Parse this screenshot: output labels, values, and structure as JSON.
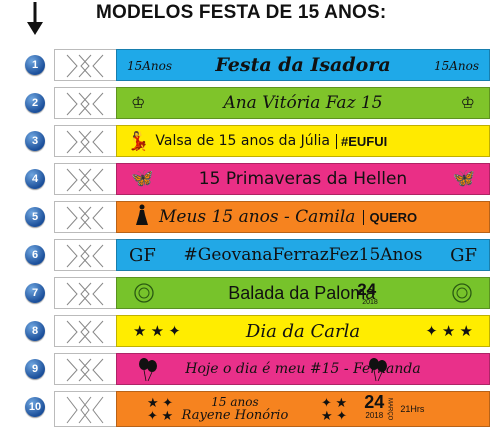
{
  "header": {
    "title": "MODELOS FESTA DE 15 ANOS:"
  },
  "colors": {
    "blue": "#1fa9e8",
    "green": "#7fc42a",
    "yellow": "#ffea00",
    "pink": "#ea2f86",
    "orange": "#f6831f",
    "number_badge": "#1b4f9a"
  },
  "models": [
    {
      "number": "1",
      "text": "Festa da Isadora",
      "badge_text": "15Anos"
    },
    {
      "number": "2",
      "text": "Ana Vitória Faz 15"
    },
    {
      "number": "3",
      "text": "Valsa de 15 anos da Júlia",
      "tag": "#EUFUI"
    },
    {
      "number": "4",
      "text": "15 Primaveras da Hellen"
    },
    {
      "number": "5",
      "text": "Meus 15 anos - Camila",
      "tag": "QUERO"
    },
    {
      "number": "6",
      "text": "#GeovanaFerrazFez15Anos",
      "monogram": "GF"
    },
    {
      "number": "7",
      "text": "Balada da Paloma",
      "date_day": "24",
      "date_year": "2018"
    },
    {
      "number": "8",
      "text": "Dia da Carla"
    },
    {
      "number": "9",
      "text": "Hoje o dia é meu #15 - Fernanda"
    },
    {
      "number": "10",
      "line1": "15 anos",
      "line2": "Rayene Honório",
      "date_day": "24",
      "date_year": "2018",
      "date_month": "MARÇO",
      "time": "21Hrs"
    }
  ]
}
